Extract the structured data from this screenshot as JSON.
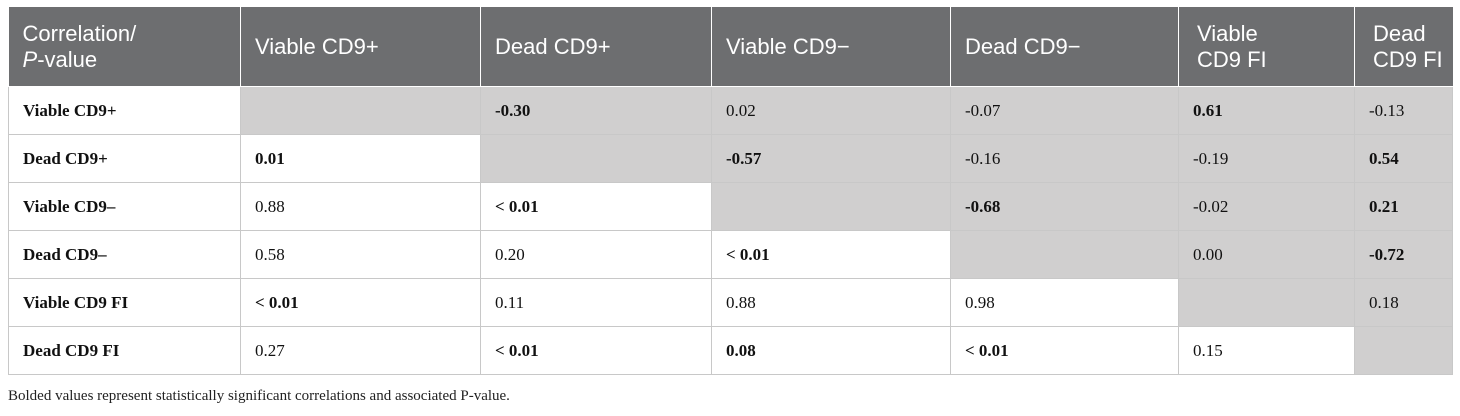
{
  "header": {
    "corner_line1": "Correlation/",
    "corner_p": "P",
    "corner_rest": "-value",
    "columns": [
      [
        "Viable CD9+"
      ],
      [
        "Dead CD9+"
      ],
      [
        "Viable CD9−"
      ],
      [
        "Dead CD9−"
      ],
      [
        "Viable",
        "CD9 FI"
      ],
      [
        "Dead",
        "CD9 FI"
      ]
    ]
  },
  "rows": [
    {
      "label": "Viable CD9+",
      "cells": [
        {
          "v": "",
          "shade": true,
          "bold": false
        },
        {
          "v": "-0.30",
          "shade": true,
          "bold": true
        },
        {
          "v": "0.02",
          "shade": true,
          "bold": false
        },
        {
          "v": "-0.07",
          "shade": true,
          "bold": false
        },
        {
          "v": "0.61",
          "shade": true,
          "bold": true
        },
        {
          "v": "-0.13",
          "shade": true,
          "bold": false
        }
      ]
    },
    {
      "label": "Dead CD9+",
      "cells": [
        {
          "v": "0.01",
          "shade": false,
          "bold": true
        },
        {
          "v": "",
          "shade": true,
          "bold": false
        },
        {
          "v": "-0.57",
          "shade": true,
          "bold": true
        },
        {
          "v": "-0.16",
          "shade": true,
          "bold": false
        },
        {
          "v": "-0.19",
          "shade": true,
          "bold": false
        },
        {
          "v": "0.54",
          "shade": true,
          "bold": true
        }
      ]
    },
    {
      "label": "Viable CD9–",
      "cells": [
        {
          "v": "0.88",
          "shade": false,
          "bold": false
        },
        {
          "v": "< 0.01",
          "shade": false,
          "bold": true
        },
        {
          "v": "",
          "shade": true,
          "bold": false
        },
        {
          "v": "-0.68",
          "shade": true,
          "bold": true
        },
        {
          "v": "-0.02",
          "shade": true,
          "bold": false
        },
        {
          "v": "0.21",
          "shade": true,
          "bold": true
        }
      ]
    },
    {
      "label": "Dead CD9–",
      "cells": [
        {
          "v": "0.58",
          "shade": false,
          "bold": false
        },
        {
          "v": "0.20",
          "shade": false,
          "bold": false
        },
        {
          "v": "< 0.01",
          "shade": false,
          "bold": true
        },
        {
          "v": "",
          "shade": true,
          "bold": false
        },
        {
          "v": "0.00",
          "shade": true,
          "bold": false
        },
        {
          "v": "-0.72",
          "shade": true,
          "bold": true
        }
      ]
    },
    {
      "label": "Viable CD9 FI",
      "cells": [
        {
          "v": "< 0.01",
          "shade": false,
          "bold": true
        },
        {
          "v": "0.11",
          "shade": false,
          "bold": false
        },
        {
          "v": "0.88",
          "shade": false,
          "bold": false
        },
        {
          "v": "0.98",
          "shade": false,
          "bold": false
        },
        {
          "v": "",
          "shade": true,
          "bold": false
        },
        {
          "v": "0.18",
          "shade": true,
          "bold": false
        }
      ]
    },
    {
      "label": "Dead CD9 FI",
      "cells": [
        {
          "v": "0.27",
          "shade": false,
          "bold": false
        },
        {
          "v": "< 0.01",
          "shade": false,
          "bold": true
        },
        {
          "v": "0.08",
          "shade": false,
          "bold": true
        },
        {
          "v": "< 0.01",
          "shade": false,
          "bold": true
        },
        {
          "v": "0.15",
          "shade": false,
          "bold": false
        },
        {
          "v": "",
          "shade": true,
          "bold": false
        }
      ]
    }
  ],
  "footnote": "Bolded values represent statistically significant correlations and associated P-value.",
  "colors": {
    "header_bg": "#6d6e70",
    "shaded_cell": "#d0cfcf",
    "header_text": "#ffffff"
  }
}
